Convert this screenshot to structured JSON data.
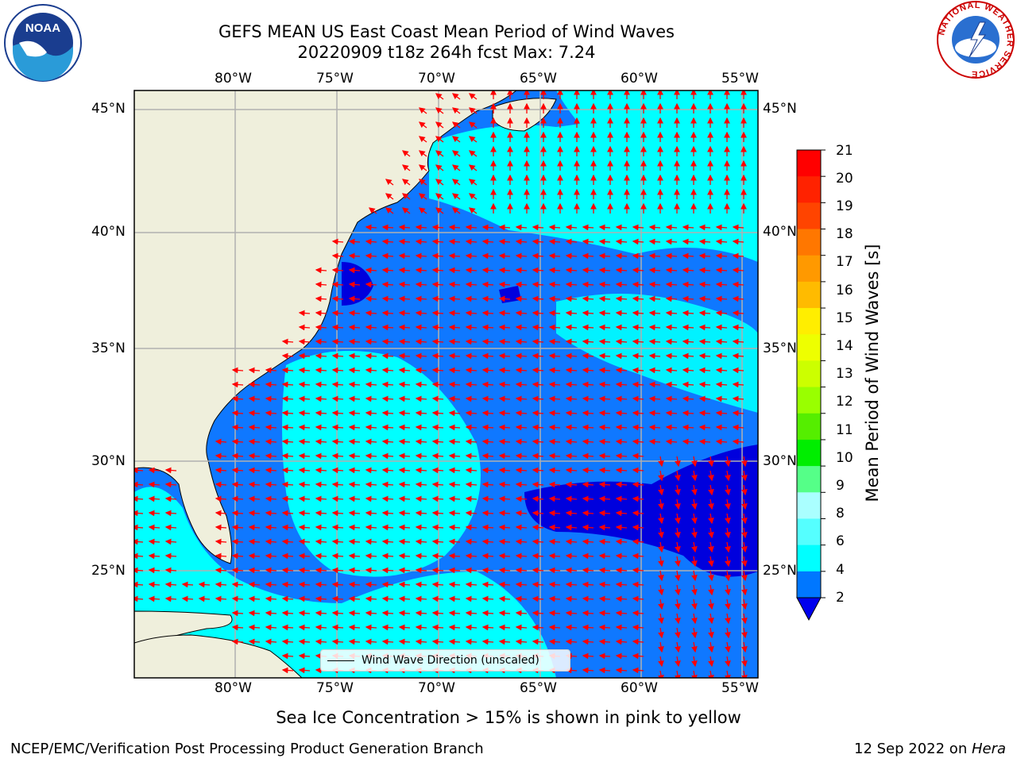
{
  "header": {
    "title_line1": "GEFS MEAN US East Coast Mean Period of Wind Waves",
    "title_line2": "20220909 t18z 264h fcst   Max: 7.24"
  },
  "logos": {
    "left": {
      "name": "noaa-logo",
      "text": "NOAA"
    },
    "right": {
      "name": "nws-logo",
      "ring_text": "NATIONAL WEATHER SERVICE"
    }
  },
  "map": {
    "lon_ticks": [
      "80°W",
      "75°W",
      "70°W",
      "65°W",
      "60°W",
      "55°W"
    ],
    "lat_ticks": [
      "45°N",
      "40°N",
      "35°N",
      "30°N",
      "25°N"
    ],
    "legend_label": "Wind Wave Direction (unscaled)",
    "colors": {
      "land": "#efefdc",
      "deep_blue": "#0000dd",
      "mid_blue": "#0f78ff",
      "cyan": "#00ffff",
      "light_cyan": "#80fcfc",
      "arrow": "#ff0000",
      "grid": "#b0b0b0"
    }
  },
  "colorbar": {
    "label": "Mean Period of Wind Waves [s]",
    "ticks": [
      "21",
      "20",
      "19",
      "18",
      "17",
      "16",
      "15",
      "14",
      "13",
      "12",
      "11",
      "10",
      "9",
      "8",
      "6",
      "4",
      "2"
    ],
    "colors": [
      "#ff0000",
      "#ff2200",
      "#ff4400",
      "#ff7700",
      "#ff9900",
      "#ffbb00",
      "#ffee00",
      "#eeff00",
      "#ccff00",
      "#99ff00",
      "#55ee00",
      "#00ee00",
      "#55ff88",
      "#aaffff",
      "#55ffff",
      "#00ffff",
      "#0077ff"
    ],
    "under_color": "#0000ee"
  },
  "footer": {
    "ice_note": "Sea Ice Concentration > 15% is shown in pink to yellow",
    "branch": "NCEP/EMC/Verification Post Processing Product Generation Branch",
    "date_prefix": "12 Sep 2022 on ",
    "machine": "Hera"
  }
}
